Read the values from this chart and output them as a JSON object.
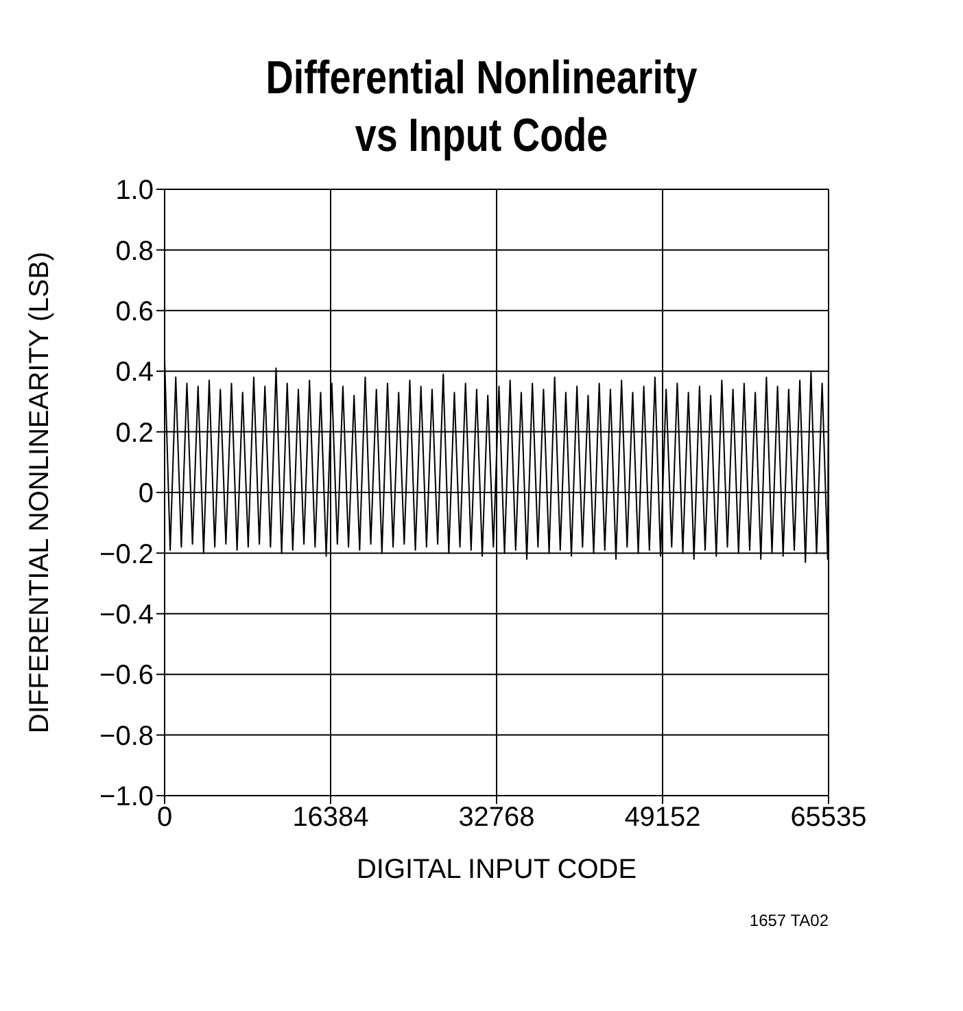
{
  "chart_data": {
    "type": "line",
    "title": "Differential Nonlinearity\nvs Input Code",
    "xlabel": "DIGITAL INPUT CODE",
    "ylabel": "DIFFERENTIAL NONLINEARITY (LSB)",
    "xlim": [
      0,
      65535
    ],
    "xticks": [
      0,
      16384,
      32768,
      49152,
      65535
    ],
    "ylim": [
      -1.0,
      1.0
    ],
    "yticks": [
      {
        "value": -1.0,
        "label": "−1.0"
      },
      {
        "value": -0.8,
        "label": "−0.8"
      },
      {
        "value": -0.6,
        "label": "−0.6"
      },
      {
        "value": -0.4,
        "label": "−0.4"
      },
      {
        "value": -0.2,
        "label": "−0.2"
      },
      {
        "value": 0,
        "label": "0"
      },
      {
        "value": 0.2,
        "label": "0.2"
      },
      {
        "value": 0.4,
        "label": "0.4"
      },
      {
        "value": 0.6,
        "label": "0.6"
      },
      {
        "value": 0.8,
        "label": "0.8"
      },
      {
        "value": 1.0,
        "label": "1.0"
      }
    ],
    "grid": true,
    "marker": "none",
    "line_style": "solid",
    "annotations": [
      "1657 TA02"
    ],
    "series": [
      {
        "color": "#000000",
        "x": [
          0,
          550,
          1100,
          1650,
          2200,
          2750,
          3300,
          3850,
          4400,
          4950,
          5500,
          6050,
          6600,
          7150,
          7700,
          8250,
          8800,
          9350,
          9900,
          10450,
          11000,
          11550,
          12100,
          12650,
          13200,
          13750,
          14300,
          14850,
          15400,
          15950,
          16500,
          17050,
          17600,
          18150,
          18700,
          19250,
          19800,
          20350,
          20900,
          21450,
          22000,
          22550,
          23100,
          23650,
          24200,
          24750,
          25300,
          25850,
          26400,
          26950,
          27500,
          28050,
          28600,
          29150,
          29700,
          30250,
          30800,
          31350,
          31900,
          32450,
          33000,
          33550,
          34100,
          34650,
          35200,
          35750,
          36300,
          36850,
          37400,
          37950,
          38500,
          39050,
          39600,
          40150,
          40700,
          41250,
          41800,
          42350,
          42900,
          43450,
          44000,
          44550,
          45100,
          45650,
          46200,
          46750,
          47300,
          47850,
          48400,
          48950,
          49500,
          50050,
          50600,
          51150,
          51700,
          52250,
          52800,
          53350,
          53900,
          54450,
          55000,
          55550,
          56100,
          56650,
          57200,
          57750,
          58300,
          58850,
          59400,
          59950,
          60500,
          61050,
          61600,
          62150,
          62700,
          63250,
          63800,
          64350,
          64900,
          65450,
          65535
        ],
        "values": [
          0.44,
          -0.19,
          0.38,
          -0.18,
          0.36,
          -0.17,
          0.35,
          -0.2,
          0.37,
          -0.18,
          0.34,
          -0.17,
          0.36,
          -0.19,
          0.33,
          -0.18,
          0.38,
          -0.17,
          0.35,
          -0.18,
          0.41,
          -0.2,
          0.36,
          -0.19,
          0.34,
          -0.17,
          0.37,
          -0.18,
          0.33,
          -0.21,
          0.36,
          -0.17,
          0.35,
          -0.18,
          0.32,
          -0.19,
          0.38,
          -0.17,
          0.34,
          -0.2,
          0.36,
          -0.18,
          0.33,
          -0.17,
          0.37,
          -0.19,
          0.35,
          -0.18,
          0.34,
          -0.17,
          0.39,
          -0.2,
          0.33,
          -0.18,
          0.36,
          -0.19,
          0.34,
          -0.21,
          0.32,
          -0.18,
          0.35,
          -0.2,
          0.37,
          -0.19,
          0.33,
          -0.22,
          0.36,
          -0.18,
          0.34,
          -0.2,
          0.38,
          -0.19,
          0.33,
          -0.21,
          0.35,
          -0.18,
          0.32,
          -0.2,
          0.36,
          -0.19,
          0.34,
          -0.22,
          0.37,
          -0.18,
          0.33,
          -0.2,
          0.35,
          -0.19,
          0.38,
          -0.21,
          0.34,
          -0.18,
          0.36,
          -0.2,
          0.33,
          -0.22,
          0.35,
          -0.19,
          0.32,
          -0.21,
          0.37,
          -0.18,
          0.34,
          -0.2,
          0.36,
          -0.19,
          0.33,
          -0.22,
          0.38,
          -0.2,
          0.35,
          -0.21,
          0.34,
          -0.19,
          0.37,
          -0.23,
          0.4,
          -0.2,
          0.36,
          -0.22,
          0.44
        ]
      }
    ]
  }
}
